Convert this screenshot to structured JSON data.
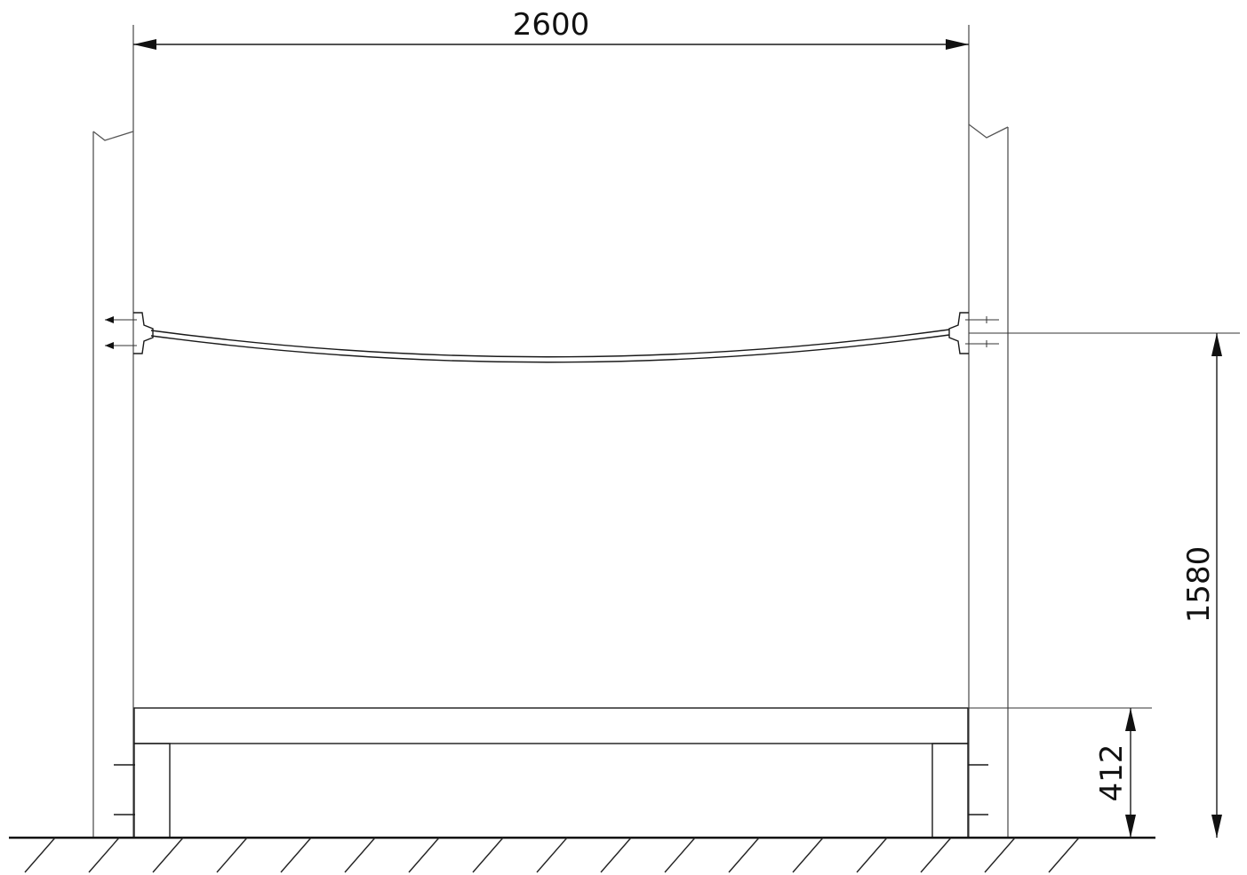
{
  "dimensions": {
    "span": {
      "label": "2600"
    },
    "rope_height": {
      "label": "1580"
    },
    "bench_height": {
      "label": "412"
    }
  },
  "parts": {
    "left_post": {
      "icon": "post-icon"
    },
    "right_post": {
      "icon": "post-icon"
    },
    "rope": {
      "icon": "rope-icon"
    },
    "bench": {
      "icon": "bench-icon"
    },
    "ground": {
      "icon": "ground-hatch-icon"
    }
  }
}
